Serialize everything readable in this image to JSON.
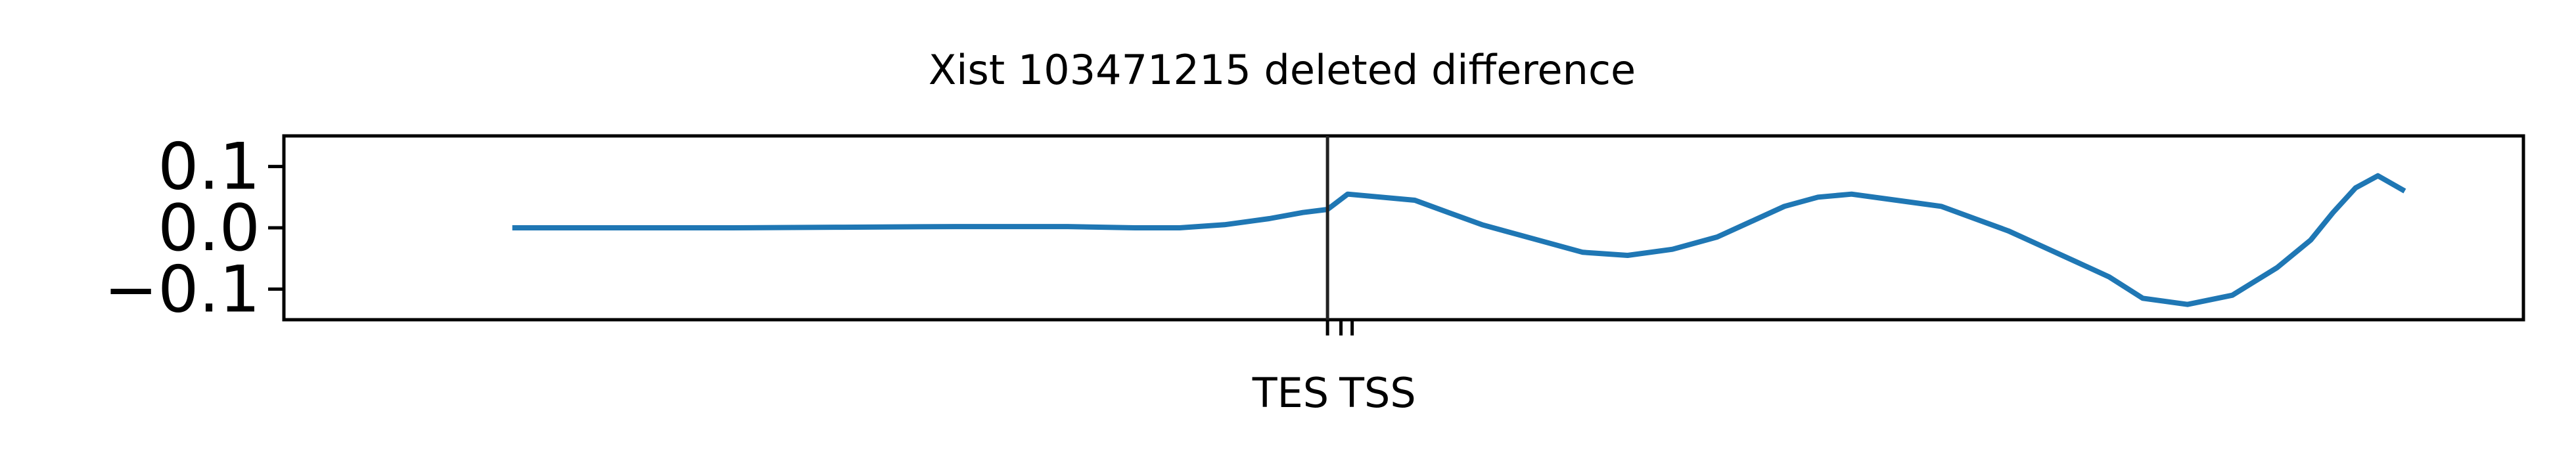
{
  "chart_data": {
    "type": "line",
    "title": "Xist 103471215 deleted difference",
    "xlabel": "",
    "ylabel": "",
    "ylim": [
      -0.15,
      0.15
    ],
    "yticks": [
      {
        "value": 0.1,
        "label": "0.1"
      },
      {
        "value": 0.0,
        "label": "0.0"
      },
      {
        "value": -0.1,
        "label": "−0.1"
      }
    ],
    "xlim": [
      0,
      100
    ],
    "markers": [
      {
        "x": 46.6,
        "label": "TES",
        "line": true
      },
      {
        "x": 47.2,
        "label": "TSS",
        "line": false
      },
      {
        "x": 47.7,
        "label": "",
        "line": false
      }
    ],
    "grid": false,
    "series": [
      {
        "color": "#1f77b4",
        "x": [
          10.2,
          15.0,
          20.0,
          25.0,
          30.0,
          35.0,
          38.0,
          40.0,
          42.0,
          44.0,
          45.5,
          46.6,
          47.5,
          49.0,
          50.5,
          52.0,
          53.5,
          55.0,
          56.5,
          58.0,
          60.0,
          62.0,
          64.0,
          65.5,
          67.0,
          68.5,
          70.0,
          72.0,
          74.0,
          75.5,
          77.0,
          78.5,
          80.0,
          81.5,
          83.0,
          85.0,
          87.0,
          89.0,
          90.5,
          91.5,
          92.5,
          93.5,
          94.7
        ],
        "y": [
          0.0,
          0.0,
          0.0,
          0.001,
          0.002,
          0.002,
          0.0,
          0.0,
          0.005,
          0.015,
          0.025,
          0.03,
          0.055,
          0.05,
          0.045,
          0.025,
          0.005,
          -0.01,
          -0.025,
          -0.04,
          -0.045,
          -0.035,
          -0.015,
          0.01,
          0.035,
          0.05,
          0.055,
          0.045,
          0.035,
          0.015,
          -0.005,
          -0.03,
          -0.055,
          -0.08,
          -0.115,
          -0.125,
          -0.11,
          -0.065,
          -0.02,
          0.025,
          0.065,
          0.085,
          0.06
        ]
      }
    ]
  }
}
